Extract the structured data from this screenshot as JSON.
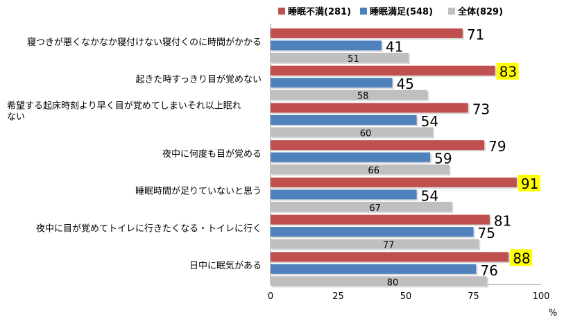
{
  "chart_data": {
    "type": "bar",
    "orientation": "horizontal",
    "xlim": [
      0,
      100
    ],
    "x_ticks": [
      "0",
      "25",
      "50",
      "75",
      "100"
    ],
    "unit": "%",
    "legend_position": "top",
    "categories": [
      "寝つきが悪くなかなか寝付けない寝付くのに時間がかかる",
      "起きた時すっきり目が覚めない",
      "希望する起床時刻より早く目が覚めてしまいそれ以上眠れない",
      "夜中に何度も目が覚める",
      "睡眠時間が足りていないと思う",
      "夜中に目が覚めてトイレに行きたくなる・トイレに行く",
      "日中に眠気がある"
    ],
    "category_lines": [
      [
        "寝つきが悪くなかなか寝付けない寝付くのに時間がかかる"
      ],
      [
        "起きた時すっきり目が覚めない"
      ],
      [
        "希望する起床時刻より早く目が覚めてしまいそれ以上眠れ",
        "ない"
      ],
      [
        "夜中に何度も目が覚める"
      ],
      [
        "睡眠時間が足りていないと思う"
      ],
      [
        "夜中に目が覚めてトイレに行きたくなる・トイレに行く"
      ],
      [
        "日中に眠気がある"
      ]
    ],
    "series": [
      {
        "name": "睡眠不満(281)",
        "color": "#c0504d",
        "values": [
          71,
          83,
          73,
          79,
          91,
          81,
          88
        ]
      },
      {
        "name": "睡眠満足(548)",
        "color": "#4f81bd",
        "values": [
          41,
          45,
          54,
          59,
          54,
          75,
          76
        ]
      },
      {
        "name": "全体(829)",
        "color": "#bfbfbf",
        "values": [
          51,
          58,
          60,
          66,
          67,
          77,
          80
        ]
      }
    ],
    "highlighted_values": [
      {
        "series": 0,
        "index": 1,
        "color": "#ffff00"
      },
      {
        "series": 0,
        "index": 4,
        "color": "#ffff00"
      },
      {
        "series": 0,
        "index": 6,
        "color": "#ffff00"
      }
    ]
  }
}
